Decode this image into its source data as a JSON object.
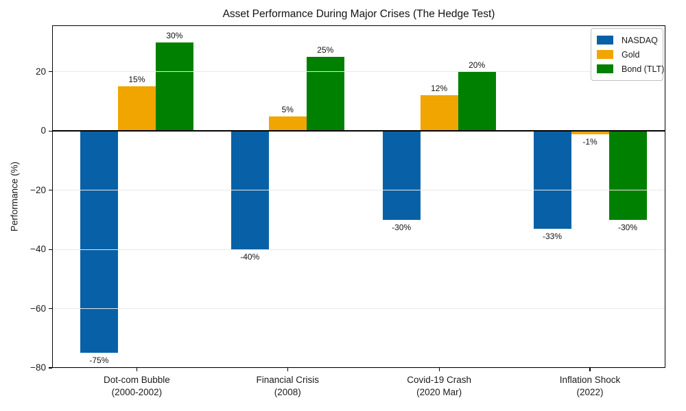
{
  "chart_data": {
    "type": "bar",
    "title": "Asset Performance During Major Crises (The Hedge Test)",
    "ylabel": "Performance (%)",
    "categories": [
      {
        "name": "Dot-com Bubble",
        "period": "(2000-2002)"
      },
      {
        "name": "Financial Crisis",
        "period": "(2008)"
      },
      {
        "name": "Covid-19 Crash",
        "period": "(2020 Mar)"
      },
      {
        "name": "Inflation Shock",
        "period": "(2022)"
      }
    ],
    "series": [
      {
        "name": "NASDAQ",
        "color": "#0861a6",
        "values": [
          -75,
          -40,
          -30,
          -33
        ],
        "labels": [
          "-75%",
          "-40%",
          "-30%",
          "-33%"
        ]
      },
      {
        "name": "Gold",
        "color": "#f0a500",
        "values": [
          15,
          5,
          12,
          -1
        ],
        "labels": [
          "15%",
          "5%",
          "12%",
          "-1%"
        ]
      },
      {
        "name": "Bond (TLT)",
        "color": "#008000",
        "values": [
          30,
          25,
          20,
          -30
        ],
        "labels": [
          "30%",
          "25%",
          "20%",
          "-30%"
        ]
      }
    ],
    "yticks": [
      {
        "value": 20,
        "label": "20"
      },
      {
        "value": 0,
        "label": "0"
      },
      {
        "value": -20,
        "label": "−20"
      },
      {
        "value": -40,
        "label": "−40"
      },
      {
        "value": -60,
        "label": "−60"
      },
      {
        "value": -80,
        "label": "−80"
      }
    ],
    "ylim": [
      -80,
      35.7
    ],
    "grid": true,
    "legend_position": "upper right"
  }
}
